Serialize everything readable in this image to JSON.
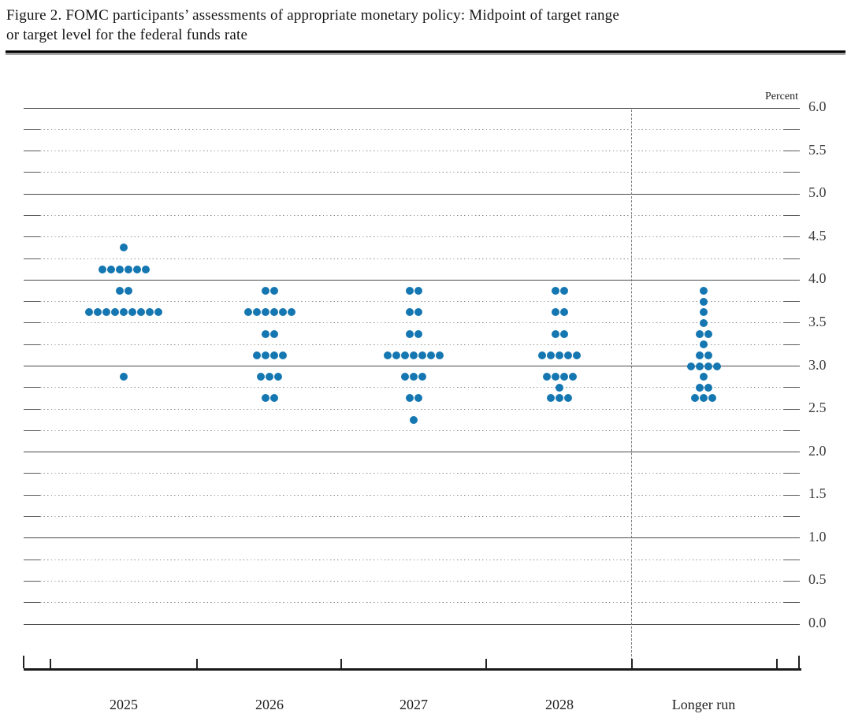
{
  "figure": {
    "title_lines": [
      "Figure 2. FOMC participants’ assessments of appropriate monetary policy: Midpoint of target range",
      "or target level for the federal funds rate"
    ]
  },
  "chart_data": {
    "type": "scatter",
    "title": "Figure 2. FOMC participants’ assessments of appropriate monetary policy: Midpoint of target range or target level for the federal funds rate",
    "unit_label": "Percent",
    "ylabel": "Percent",
    "ylim": [
      0.0,
      6.0
    ],
    "y_minor_step": 0.25,
    "grid": "dotted quarter-point lines, solid lines at whole percentages",
    "legend_position": "none",
    "dot_color": "#1577b1",
    "y_ticks": [
      {
        "value": 6.0,
        "label": "6.0"
      },
      {
        "value": 5.5,
        "label": "5.5"
      },
      {
        "value": 5.0,
        "label": "5.0"
      },
      {
        "value": 4.5,
        "label": "4.5"
      },
      {
        "value": 4.0,
        "label": "4.0"
      },
      {
        "value": 3.5,
        "label": "3.5"
      },
      {
        "value": 3.0,
        "label": "3.0"
      },
      {
        "value": 2.5,
        "label": "2.5"
      },
      {
        "value": 2.0,
        "label": "2.0"
      },
      {
        "value": 1.5,
        "label": "1.5"
      },
      {
        "value": 1.0,
        "label": "1.0"
      },
      {
        "value": 0.5,
        "label": "0.5"
      },
      {
        "value": 0.0,
        "label": "0.0"
      }
    ],
    "categories": [
      "2025",
      "2026",
      "2027",
      "2028",
      "Longer run"
    ],
    "series": [
      {
        "category": "2025",
        "distribution": [
          {
            "rate": 4.375,
            "count": 1
          },
          {
            "rate": 4.125,
            "count": 6
          },
          {
            "rate": 3.875,
            "count": 2
          },
          {
            "rate": 3.625,
            "count": 9
          },
          {
            "rate": 2.875,
            "count": 1
          }
        ]
      },
      {
        "category": "2026",
        "distribution": [
          {
            "rate": 3.875,
            "count": 2
          },
          {
            "rate": 3.625,
            "count": 6
          },
          {
            "rate": 3.375,
            "count": 2
          },
          {
            "rate": 3.125,
            "count": 4
          },
          {
            "rate": 2.875,
            "count": 3
          },
          {
            "rate": 2.625,
            "count": 2
          }
        ]
      },
      {
        "category": "2027",
        "distribution": [
          {
            "rate": 3.875,
            "count": 2
          },
          {
            "rate": 3.625,
            "count": 2
          },
          {
            "rate": 3.375,
            "count": 2
          },
          {
            "rate": 3.125,
            "count": 7
          },
          {
            "rate": 2.875,
            "count": 3
          },
          {
            "rate": 2.625,
            "count": 2
          },
          {
            "rate": 2.375,
            "count": 1
          }
        ]
      },
      {
        "category": "2028",
        "distribution": [
          {
            "rate": 3.875,
            "count": 2
          },
          {
            "rate": 3.625,
            "count": 2
          },
          {
            "rate": 3.375,
            "count": 2
          },
          {
            "rate": 3.125,
            "count": 5
          },
          {
            "rate": 2.875,
            "count": 4
          },
          {
            "rate": 2.75,
            "count": 1
          },
          {
            "rate": 2.625,
            "count": 3
          }
        ]
      },
      {
        "category": "Longer run",
        "distribution": [
          {
            "rate": 3.875,
            "count": 1
          },
          {
            "rate": 3.75,
            "count": 1
          },
          {
            "rate": 3.625,
            "count": 1
          },
          {
            "rate": 3.5,
            "count": 1
          },
          {
            "rate": 3.375,
            "count": 2
          },
          {
            "rate": 3.25,
            "count": 1
          },
          {
            "rate": 3.125,
            "count": 2
          },
          {
            "rate": 3.0,
            "count": 4
          },
          {
            "rate": 2.875,
            "count": 1
          },
          {
            "rate": 2.75,
            "count": 2
          },
          {
            "rate": 2.625,
            "count": 3
          }
        ]
      }
    ]
  }
}
